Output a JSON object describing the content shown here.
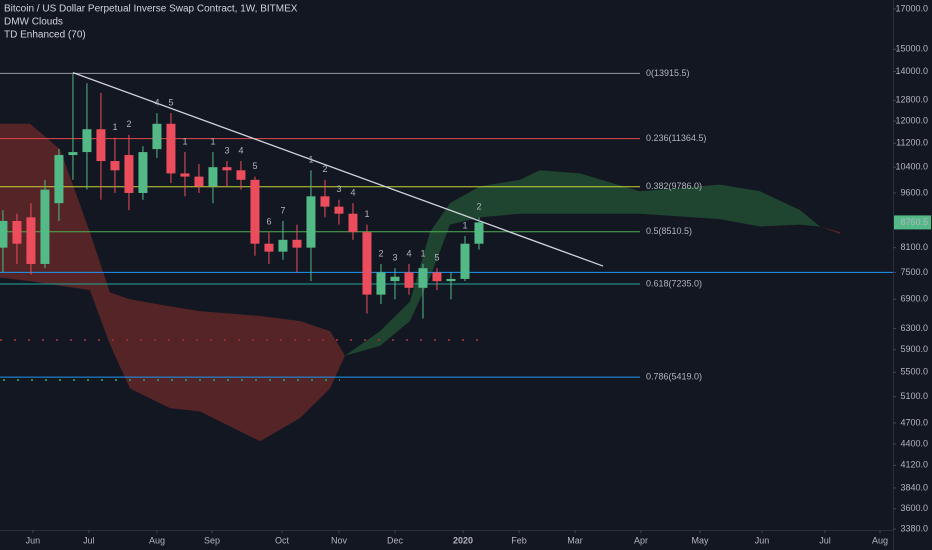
{
  "chart_data": {
    "type": "candlestick",
    "title": "Bitcoin / US Dollar Perpetual Inverse Swap Contract, 1W, BITMEX",
    "indicators": [
      "DMW Clouds",
      "TD Enhanced (70)"
    ],
    "log_scale": true,
    "up_color": "#53b987",
    "down_color": "#eb4d5c",
    "x": [
      0,
      1,
      2,
      3,
      4,
      5,
      6,
      7,
      8,
      9,
      10,
      11,
      12,
      13,
      14,
      15,
      16,
      17,
      18,
      19,
      20,
      21,
      22,
      23,
      24,
      25,
      26,
      27,
      28,
      29,
      30,
      31,
      32,
      33,
      34
    ],
    "open": [
      8100,
      8800,
      8900,
      7700,
      9300,
      10800,
      10900,
      11700,
      10600,
      10800,
      9600,
      11000,
      11900,
      10200,
      10100,
      9800,
      10400,
      10300,
      10000,
      8200,
      8000,
      8300,
      8100,
      9500,
      9200,
      9000,
      8500,
      7000,
      7300,
      7500,
      7150,
      7500,
      7300,
      7350,
      8200
    ],
    "high": [
      9100,
      9000,
      9300,
      10000,
      11000,
      13900,
      13500,
      13100,
      11400,
      11500,
      11100,
      12300,
      12300,
      10900,
      10500,
      10900,
      10600,
      10600,
      10100,
      8500,
      8800,
      8700,
      10300,
      10000,
      9400,
      9300,
      8700,
      7700,
      7600,
      7700,
      7700,
      7600,
      7500,
      8400,
      8900
    ],
    "low": [
      7500,
      7700,
      7450,
      7600,
      8800,
      10000,
      9700,
      9400,
      9600,
      9100,
      9400,
      10700,
      9900,
      9500,
      9600,
      9300,
      9800,
      9700,
      7900,
      7700,
      7800,
      7500,
      7300,
      8900,
      8700,
      8300,
      6600,
      6800,
      6900,
      7000,
      6500,
      7100,
      6900,
      7300,
      8050
    ],
    "close": [
      8800,
      8200,
      7700,
      9700,
      10800,
      10900,
      11700,
      10600,
      10300,
      9600,
      10900,
      11900,
      10200,
      10100,
      9800,
      10400,
      10300,
      10000,
      8200,
      8000,
      8300,
      8100,
      9500,
      9200,
      9000,
      8500,
      7000,
      7500,
      7400,
      7150,
      7600,
      7300,
      7350,
      8200,
      8760.5
    ],
    "last_price": 8760.5,
    "xlim": [
      -0.21,
      63.57
    ],
    "ylim": [
      3370,
      17480
    ],
    "xticks": [
      {
        "value": 2.14,
        "label": "Jun"
      },
      {
        "value": 6.14,
        "label": "Jul"
      },
      {
        "value": 11,
        "label": "Aug"
      },
      {
        "value": 14.93,
        "label": "Sep"
      },
      {
        "value": 19.93,
        "label": "Oct"
      },
      {
        "value": 24,
        "label": "Nov"
      },
      {
        "value": 28,
        "label": "Dec"
      },
      {
        "value": 32.86,
        "label": "2020"
      },
      {
        "value": 36.86,
        "label": "Feb"
      },
      {
        "value": 40.86,
        "label": "Mar"
      },
      {
        "value": 45.57,
        "label": "Apr"
      },
      {
        "value": 49.79,
        "label": "May"
      },
      {
        "value": 54.21,
        "label": "Jun"
      },
      {
        "value": 58.71,
        "label": "Jul"
      },
      {
        "value": 62.64,
        "label": "Aug"
      }
    ],
    "yticks": [
      {
        "value": 17000,
        "label": "17000.0"
      },
      {
        "value": 15000,
        "label": "15000.0"
      },
      {
        "value": 14000,
        "label": "14000.0"
      },
      {
        "value": 12800,
        "label": "12800.0"
      },
      {
        "value": 12000,
        "label": "12000.0"
      },
      {
        "value": 11200,
        "label": "11200.0"
      },
      {
        "value": 10400,
        "label": "10400.0"
      },
      {
        "value": 9600,
        "label": "9600.0"
      },
      {
        "value": 8100,
        "label": "8100.0"
      },
      {
        "value": 7500,
        "label": "7500.0"
      },
      {
        "value": 6900,
        "label": "6900.0"
      },
      {
        "value": 6300,
        "label": "6300.0"
      },
      {
        "value": 5900,
        "label": "5900.0"
      },
      {
        "value": 5500,
        "label": "5500.0"
      },
      {
        "value": 5100,
        "label": "5100.0"
      },
      {
        "value": 4700,
        "label": "4700.0"
      },
      {
        "value": 4400,
        "label": "4400.0"
      },
      {
        "value": 4120,
        "label": "4120.0"
      },
      {
        "value": 3840,
        "label": "3840.0"
      },
      {
        "value": 3600,
        "label": "3600.0"
      },
      {
        "value": 3380,
        "label": "3380.0"
      }
    ],
    "fib_end": 45.5,
    "fib_levels": [
      {
        "label": "0(13915.5)",
        "value": 13915.5,
        "color": "#9598a1"
      },
      {
        "label": "0.236(11364.5)",
        "value": 11364.5,
        "color": "#e0474c"
      },
      {
        "label": "0.382(9786.0)",
        "value": 9786.0,
        "color": "#c7d43a"
      },
      {
        "label": "0.5(8510.5)",
        "value": 8510.5,
        "color": "#4caf50"
      },
      {
        "label": "0.618(7235.0)",
        "value": 7235.0,
        "color": "#26a69a"
      },
      {
        "label": "0.786(5419.0)",
        "value": 5419.0,
        "color": "#2196f3"
      }
    ],
    "horizontal_line": {
      "value": 7500,
      "color": "#2196f3"
    },
    "trendline": {
      "x": [
        5,
        42.86
      ],
      "y": [
        13950,
        7650
      ],
      "color": "#d1d4dc"
    },
    "clouds": [
      {
        "color": "#6b2a2a",
        "x": [
          -0.21,
          1.93,
          4.07,
          6.21,
          7.64,
          9.07,
          11.93,
          14.07,
          18.36,
          21.21,
          23.36,
          24.43
        ],
        "upper": [
          11900,
          11900,
          11000,
          8500,
          7050,
          6900,
          6750,
          6650,
          6550,
          6450,
          6250,
          5790
        ],
        "lower": [
          7380,
          7300,
          7200,
          7100,
          6000,
          5230,
          4920,
          4870,
          4440,
          4770,
          5230,
          5790
        ]
      },
      {
        "color": "#245434",
        "x": [
          24.43,
          26.93,
          29.07,
          30.5,
          31.93,
          34.07,
          36.93,
          38.36,
          41.21,
          45.5,
          51.21,
          54.07,
          56.93,
          58.36
        ],
        "upper": [
          5790,
          6250,
          6850,
          8500,
          9300,
          9800,
          10000,
          10300,
          10200,
          9650,
          9850,
          9650,
          9100,
          8650
        ],
        "lower": [
          5790,
          5970,
          6450,
          7380,
          8700,
          8900,
          9000,
          9000,
          9000,
          9000,
          8850,
          8650,
          8700,
          8650
        ]
      },
      {
        "color": "#6b2a2a",
        "x": [
          58.36,
          59.79
        ],
        "upper": [
          8650,
          8500
        ],
        "lower": [
          8650,
          8450
        ]
      }
    ],
    "td_counts": [
      {
        "candle": 8,
        "label": 1,
        "color": "#b5474f"
      },
      {
        "candle": 9,
        "label": 2,
        "color": "#b5474f"
      },
      {
        "candle": 11,
        "label": 4,
        "color": "#3f9a5f"
      },
      {
        "candle": 12,
        "label": 5,
        "color": "#b5474f"
      },
      {
        "candle": 13,
        "label": 1,
        "color": "#9a8a3a"
      },
      {
        "candle": 15,
        "label": 1,
        "color": "#b5474f"
      },
      {
        "candle": 16,
        "label": 3,
        "color": "#b5474f"
      },
      {
        "candle": 17,
        "label": 4,
        "color": "#b5474f"
      },
      {
        "candle": 18,
        "label": 5,
        "color": "#b5474f"
      },
      {
        "candle": 19,
        "label": 6,
        "color": "#b5474f"
      },
      {
        "candle": 20,
        "label": 7,
        "color": "#b5474f"
      },
      {
        "candle": 22,
        "label": 1,
        "color": "#3f9a5f"
      },
      {
        "candle": 23,
        "label": 2,
        "color": "#3f9a5f"
      },
      {
        "candle": 24,
        "label": 3,
        "color": "#3f9a5f"
      },
      {
        "candle": 25,
        "label": 4,
        "color": "#3f9a5f"
      },
      {
        "candle": 26,
        "label": 1,
        "color": "#b5474f"
      },
      {
        "candle": 27,
        "label": 2,
        "color": "#b5474f"
      },
      {
        "candle": 28,
        "label": 3,
        "color": "#b5474f"
      },
      {
        "candle": 29,
        "label": 4,
        "color": "#b5474f"
      },
      {
        "candle": 30,
        "label": 1,
        "color": "#3f9a5f"
      },
      {
        "candle": 31,
        "label": 5,
        "color": "#b5474f"
      },
      {
        "candle": 33,
        "label": 1,
        "color": "#3f9a5f"
      },
      {
        "candle": 34,
        "label": 2,
        "color": "#3f9a5f"
      }
    ]
  }
}
